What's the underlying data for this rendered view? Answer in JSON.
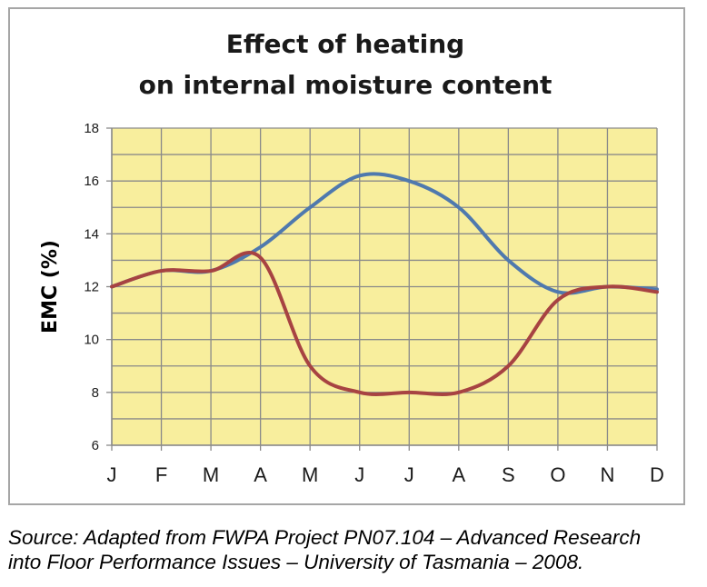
{
  "chart_data": {
    "type": "line",
    "title": [
      "Effect of heating",
      "on internal moisture content"
    ],
    "ylabel": "EMC (%)",
    "xlabel": "",
    "categories": [
      "J",
      "F",
      "M",
      "A",
      "M",
      "J",
      "J",
      "A",
      "S",
      "O",
      "N",
      "D"
    ],
    "ylim": [
      6,
      18
    ],
    "yticks": [
      6,
      8,
      10,
      12,
      14,
      16,
      18
    ],
    "grid": true,
    "legend": "none",
    "plot_background": "#f8ee9d",
    "series": [
      {
        "color": "#4f79ae",
        "values": [
          12.0,
          12.6,
          12.6,
          13.5,
          15.0,
          16.2,
          16.0,
          15.0,
          13.0,
          11.8,
          12.0,
          11.9
        ]
      },
      {
        "color": "#a74342",
        "values": [
          12.0,
          12.6,
          12.6,
          13.1,
          9.0,
          8.0,
          8.0,
          8.0,
          9.0,
          11.5,
          12.0,
          11.8
        ]
      }
    ]
  },
  "source": {
    "line1": "Source: Adapted from FWPA Project PN07.104 – Advanced Research",
    "line2": "into Floor Performance Issues – University of Tasmania – 2008."
  }
}
